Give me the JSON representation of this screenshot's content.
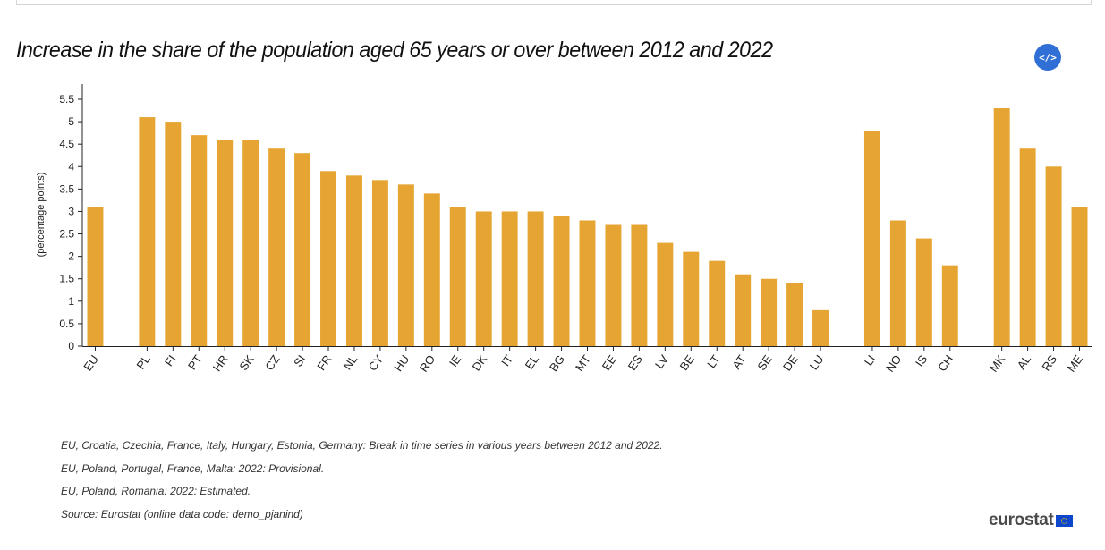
{
  "title": "Increase in the share of the population aged 65 years or over between 2012 and 2022",
  "embed_button": {
    "label": "</>",
    "icon": "code-icon"
  },
  "chart_data": {
    "type": "bar",
    "title": "Increase in the share of the population aged 65 years or over between 2012 and 2022",
    "xlabel": "",
    "ylabel": "(percentage points)",
    "ylim": [
      0,
      5.5
    ],
    "yticks": [
      "0",
      "0.5",
      "1",
      "1.5",
      "2",
      "2.5",
      "3",
      "3.5",
      "4",
      "4.5",
      "5",
      "5.5"
    ],
    "categories": [
      "EU",
      "",
      "PL",
      "FI",
      "PT",
      "HR",
      "SK",
      "CZ",
      "SI",
      "FR",
      "NL",
      "CY",
      "HU",
      "RO",
      "IE",
      "DK",
      "IT",
      "EL",
      "BG",
      "MT",
      "EE",
      "ES",
      "LV",
      "BE",
      "LT",
      "AT",
      "SE",
      "DE",
      "LU",
      "",
      "LI",
      "NO",
      "IS",
      "CH",
      "",
      "MK",
      "AL",
      "RS",
      "ME"
    ],
    "values": [
      3.1,
      null,
      5.1,
      5.0,
      4.7,
      4.6,
      4.6,
      4.4,
      4.3,
      3.9,
      3.8,
      3.7,
      3.6,
      3.4,
      3.1,
      3.0,
      3.0,
      3.0,
      2.9,
      2.8,
      2.7,
      2.7,
      2.3,
      2.1,
      1.9,
      1.6,
      1.5,
      1.4,
      0.8,
      null,
      4.8,
      2.8,
      2.4,
      1.8,
      null,
      5.3,
      4.4,
      4.0,
      3.1
    ],
    "grid": false,
    "bar_color": "#e6a532"
  },
  "notes": [
    "EU, Croatia, Czechia, France, Italy, Hungary, Estonia, Germany: Break in time series in various years between 2012 and 2022.",
    "EU, Poland, Portugal, France, Malta: 2022: Provisional.",
    "EU, Poland, Romania: 2022: Estimated.",
    "Source: Eurostat (online data code: demo_pjanind)"
  ],
  "logo": {
    "text": "eurostat",
    "icon": "eu-flag-icon"
  },
  "colors": {
    "accent": "#2f6fd6",
    "bar": "#e6a532"
  }
}
